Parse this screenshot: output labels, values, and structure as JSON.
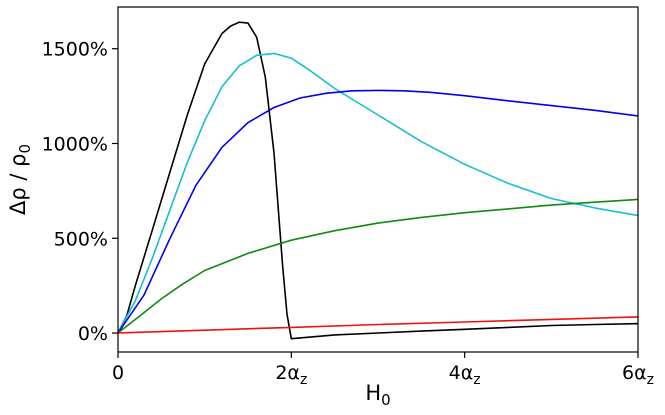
{
  "chart_data": {
    "type": "line",
    "xlabel": "H",
    "xlabel_sub": "0",
    "ylabel": "Δρ / ρ",
    "ylabel_sub": "0",
    "xlim": [
      0,
      6
    ],
    "ylim": [
      -100,
      1720
    ],
    "grid": false,
    "legend": "none",
    "x_ticks": [
      {
        "value": 0,
        "label": "0",
        "sub": ""
      },
      {
        "value": 2,
        "label": "2α",
        "sub": "z"
      },
      {
        "value": 4,
        "label": "4α",
        "sub": "z"
      },
      {
        "value": 6,
        "label": "6α",
        "sub": "z"
      }
    ],
    "y_ticks": [
      {
        "value": 0,
        "label": "0%"
      },
      {
        "value": 500,
        "label": "500%"
      },
      {
        "value": 1000,
        "label": "1000%"
      },
      {
        "value": 1500,
        "label": "1500%"
      }
    ],
    "series": [
      {
        "color": "#000000",
        "x": [
          0,
          0.1,
          0.2,
          0.4,
          0.6,
          0.8,
          1.0,
          1.2,
          1.3,
          1.4,
          1.5,
          1.6,
          1.7,
          1.8,
          1.9,
          1.95,
          2.0,
          2.5,
          3.0,
          3.5,
          4.0,
          4.5,
          5.0,
          5.5,
          6.0
        ],
        "y": [
          0,
          90,
          250,
          550,
          850,
          1150,
          1420,
          1580,
          1620,
          1640,
          1635,
          1560,
          1350,
          950,
          350,
          100,
          -30,
          -10,
          0,
          10,
          20,
          30,
          40,
          45,
          50
        ]
      },
      {
        "color": "#17becf",
        "x": [
          0,
          0.2,
          0.4,
          0.6,
          0.8,
          1.0,
          1.2,
          1.4,
          1.6,
          1.8,
          2.0,
          2.2,
          2.5,
          3.0,
          3.5,
          4.0,
          4.5,
          5.0,
          5.5,
          6.0
        ],
        "y": [
          0,
          170,
          400,
          650,
          900,
          1120,
          1300,
          1410,
          1465,
          1475,
          1450,
          1390,
          1290,
          1150,
          1010,
          890,
          790,
          710,
          660,
          620
        ]
      },
      {
        "color": "#0000ee",
        "x": [
          0,
          0.3,
          0.6,
          0.9,
          1.2,
          1.5,
          1.8,
          2.1,
          2.4,
          2.7,
          3.0,
          3.3,
          3.6,
          4.0,
          4.5,
          5.0,
          5.5,
          6.0
        ],
        "y": [
          0,
          200,
          500,
          780,
          980,
          1110,
          1190,
          1240,
          1265,
          1278,
          1280,
          1278,
          1270,
          1252,
          1225,
          1200,
          1175,
          1145
        ]
      },
      {
        "color": "#118811",
        "x": [
          0,
          0.25,
          0.5,
          0.75,
          1.0,
          1.5,
          2.0,
          2.5,
          3.0,
          3.5,
          4.0,
          4.5,
          5.0,
          5.5,
          6.0
        ],
        "y": [
          0,
          90,
          180,
          260,
          330,
          420,
          490,
          540,
          580,
          610,
          635,
          655,
          675,
          690,
          705
        ]
      },
      {
        "color": "#ee1111",
        "x": [
          0,
          1,
          2,
          3,
          4,
          5,
          6
        ],
        "y": [
          0,
          15,
          30,
          45,
          58,
          72,
          85
        ]
      }
    ]
  }
}
